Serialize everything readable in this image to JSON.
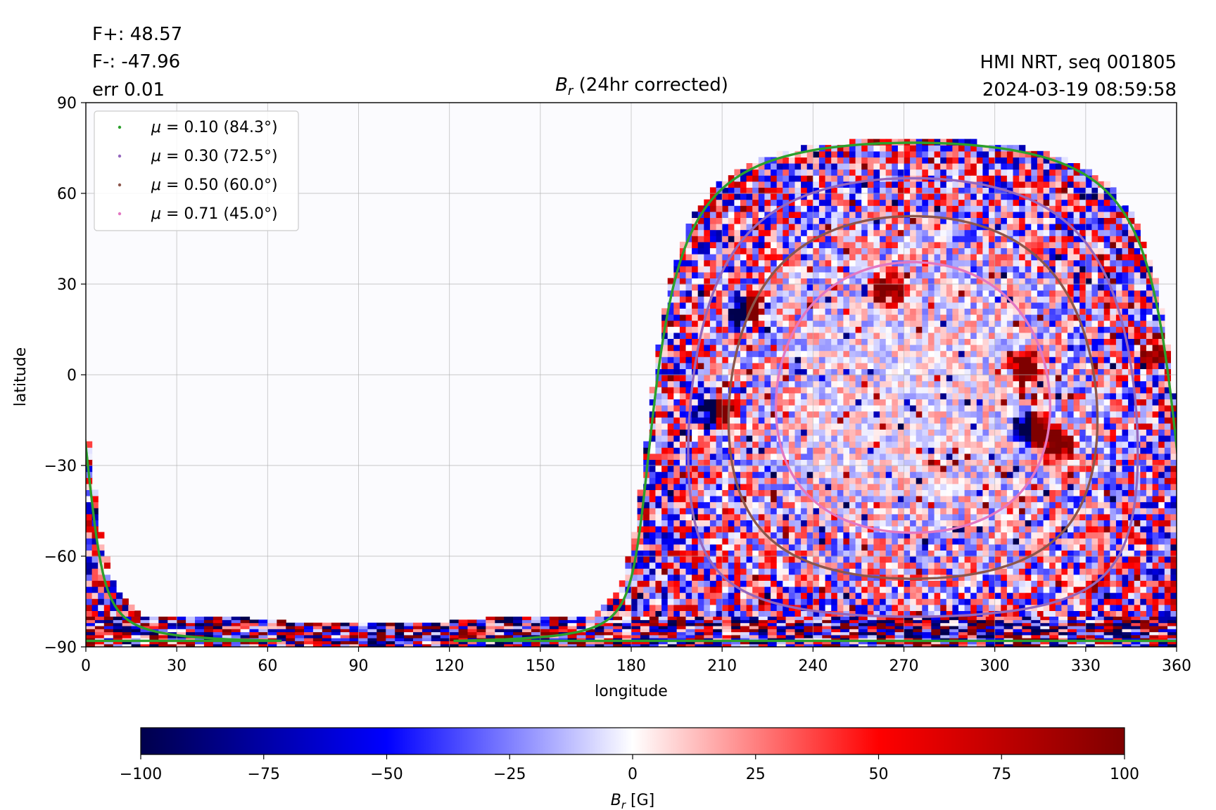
{
  "header": {
    "flux_pos": "F+: 48.57",
    "flux_neg": "F-: -47.96",
    "err": "err 0.01",
    "source": "HMI NRT, seq 001805",
    "timestamp": "2024-03-19 08:59:58"
  },
  "chart_data": {
    "type": "heatmap",
    "title_symbol": "B",
    "title_sub": "r",
    "title_rest": " (24hr corrected)",
    "xlabel": "longitude",
    "ylabel": "latitude",
    "xlim": [
      0,
      360
    ],
    "ylim": [
      -90,
      90
    ],
    "xticks": [
      0,
      30,
      60,
      90,
      120,
      150,
      180,
      210,
      240,
      270,
      300,
      330,
      360
    ],
    "yticks": [
      -90,
      -60,
      -30,
      0,
      30,
      60,
      90
    ],
    "ytick_labels": [
      "−90",
      "−60",
      "−30",
      "0",
      "30",
      "60",
      "90"
    ],
    "grid": true,
    "legend_position": "top-left",
    "disk_center": {
      "lon": 273,
      "lat": -7.5
    },
    "contours": [
      {
        "label_mu": "0.10",
        "label_angle": "(84.3°)",
        "color": "#2ca02c",
        "mu": 0.1
      },
      {
        "label_mu": "0.30",
        "label_angle": "(72.5°)",
        "color": "#9467bd",
        "mu": 0.3
      },
      {
        "label_mu": "0.50",
        "label_angle": "(60.0°)",
        "color": "#8c564b",
        "mu": 0.5
      },
      {
        "label_mu": "0.71",
        "label_angle": "(45.0°)",
        "color": "#e377c2",
        "mu": 0.71
      }
    ],
    "active_regions": [
      {
        "lon": 218,
        "lat": 22,
        "polarity": "mixed"
      },
      {
        "lon": 208,
        "lat": -12,
        "polarity": "mixed"
      },
      {
        "lon": 312,
        "lat": -18,
        "polarity": "mixed"
      },
      {
        "lon": 320,
        "lat": -23,
        "polarity": "positive"
      },
      {
        "lon": 355,
        "lat": 8,
        "polarity": "positive"
      },
      {
        "lon": 310,
        "lat": 3,
        "polarity": "positive"
      },
      {
        "lon": 265,
        "lat": 28,
        "polarity": "positive"
      }
    ],
    "colorbar": {
      "label_symbol": "B",
      "label_sub": "r",
      "label_unit": " [G]",
      "min": -100,
      "max": 100,
      "ticks": [
        -100,
        -75,
        -50,
        -25,
        0,
        25,
        50,
        75,
        100
      ],
      "tick_labels": [
        "−100",
        "−75",
        "−50",
        "−25",
        "0",
        "25",
        "50",
        "75",
        "100"
      ],
      "colormap": "seismic",
      "colors": [
        "#00004c",
        "#0000ff",
        "#ffffff",
        "#ff0000",
        "#7f0000"
      ]
    }
  }
}
